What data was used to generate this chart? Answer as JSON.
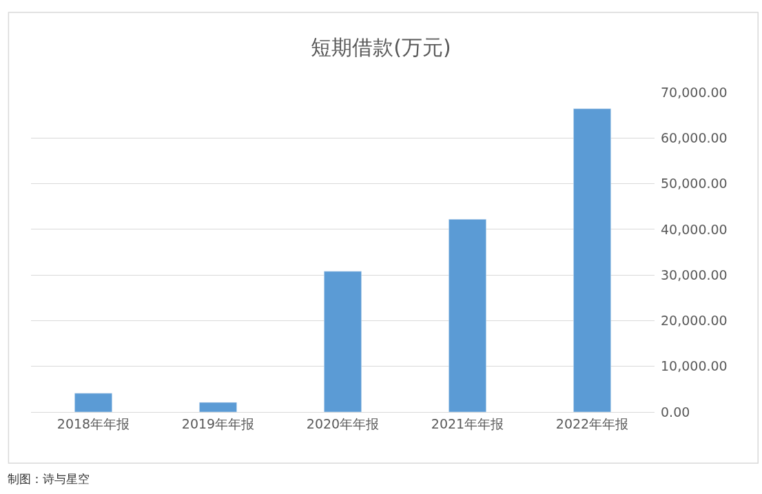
{
  "chart_data": {
    "type": "bar",
    "title": "短期借款(万元)",
    "categories": [
      "2018年年报",
      "2019年年报",
      "2020年年报",
      "2021年年报",
      "2022年年报"
    ],
    "values": [
      4100,
      2100,
      30800,
      42200,
      66400
    ],
    "color": "#5b9bd5",
    "ylim": [
      0,
      70000
    ],
    "yticks": [
      {
        "value": 0,
        "label": "0.00"
      },
      {
        "value": 10000,
        "label": "10,000.00"
      },
      {
        "value": 20000,
        "label": "20,000.00"
      },
      {
        "value": 30000,
        "label": "30,000.00"
      },
      {
        "value": 40000,
        "label": "40,000.00"
      },
      {
        "value": 50000,
        "label": "50,000.00"
      },
      {
        "value": 60000,
        "label": "60,000.00"
      },
      {
        "value": 70000,
        "label": "70,000.00"
      }
    ],
    "grid": "y",
    "annotations": [
      "制图：诗与星空"
    ]
  }
}
